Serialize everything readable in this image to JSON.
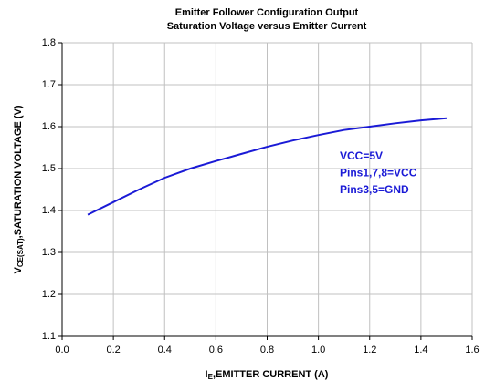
{
  "chart_data": {
    "type": "line",
    "title": [
      "Emitter Follower Configuration Output",
      "Saturation Voltage versus Emitter Current"
    ],
    "xlabel": {
      "main": "I",
      "sub": "E",
      "rest": ",EMITTER CURRENT (A)"
    },
    "ylabel": {
      "main": "V",
      "sub": "CE(SAT)",
      "rest": ",SATURATION VOLTAGE (V)"
    },
    "annotation": [
      "VCC=5V",
      "Pins1,7,8=VCC",
      "Pins3,5=GND"
    ],
    "annotation_color": "#1a1ad6",
    "x": [
      0.1,
      0.2,
      0.3,
      0.4,
      0.5,
      0.6,
      0.7,
      0.8,
      0.9,
      1.0,
      1.1,
      1.2,
      1.3,
      1.4,
      1.5
    ],
    "values": [
      1.39,
      1.42,
      1.45,
      1.478,
      1.5,
      1.518,
      1.535,
      1.552,
      1.567,
      1.58,
      1.592,
      1.6,
      1.608,
      1.615,
      1.62
    ],
    "color": "#1a1ad6",
    "xlim": [
      0,
      1.6
    ],
    "xticks": [
      {
        "value": 0,
        "label": "0.0"
      },
      0.2,
      0.4,
      0.6,
      0.8,
      {
        "value": 1,
        "label": "1.0"
      },
      1.2,
      1.4,
      1.6
    ],
    "ylim": [
      1.1,
      1.8
    ],
    "yticks": [
      1.1,
      1.2,
      1.3,
      1.4,
      1.5,
      1.6,
      1.7,
      1.8
    ],
    "grid": true
  }
}
